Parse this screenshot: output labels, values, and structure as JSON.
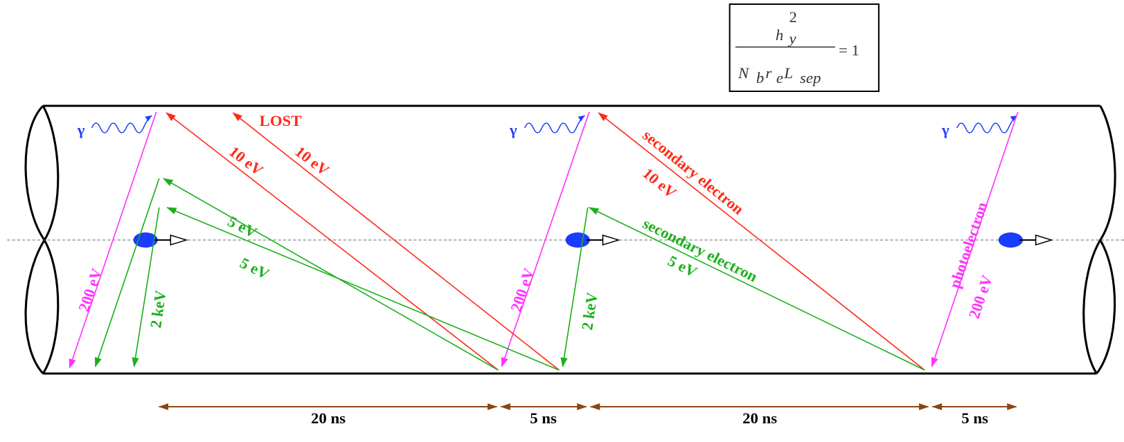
{
  "formula": {
    "numerator": "h",
    "numerator_sub": "y",
    "numerator_sup": "2",
    "denominator": [
      "N",
      "b",
      "r",
      "e",
      "L",
      "sep"
    ],
    "rhs": "= 1"
  },
  "photons": [
    "γ",
    "γ",
    "γ"
  ],
  "labels": {
    "lost": "LOST",
    "red_10ev_1": "10 eV",
    "red_10ev_2": "10 eV",
    "red_secondary": "secondary electron",
    "red_10ev_3": "10 eV",
    "green_5ev_1": "5 eV",
    "green_5ev_2": "5 eV",
    "green_secondary": "secondary electron",
    "green_5ev_3": "5 eV",
    "magenta_200ev_1": "200 eV",
    "magenta_200ev_2": "200 eV",
    "photoelectron": "photoelectron",
    "magenta_200ev_3": "200 eV",
    "green_2kev_1": "2 keV",
    "green_2kev_2": "2 keV"
  },
  "timings": [
    "20 ns",
    "5 ns",
    "20 ns",
    "5 ns"
  ]
}
